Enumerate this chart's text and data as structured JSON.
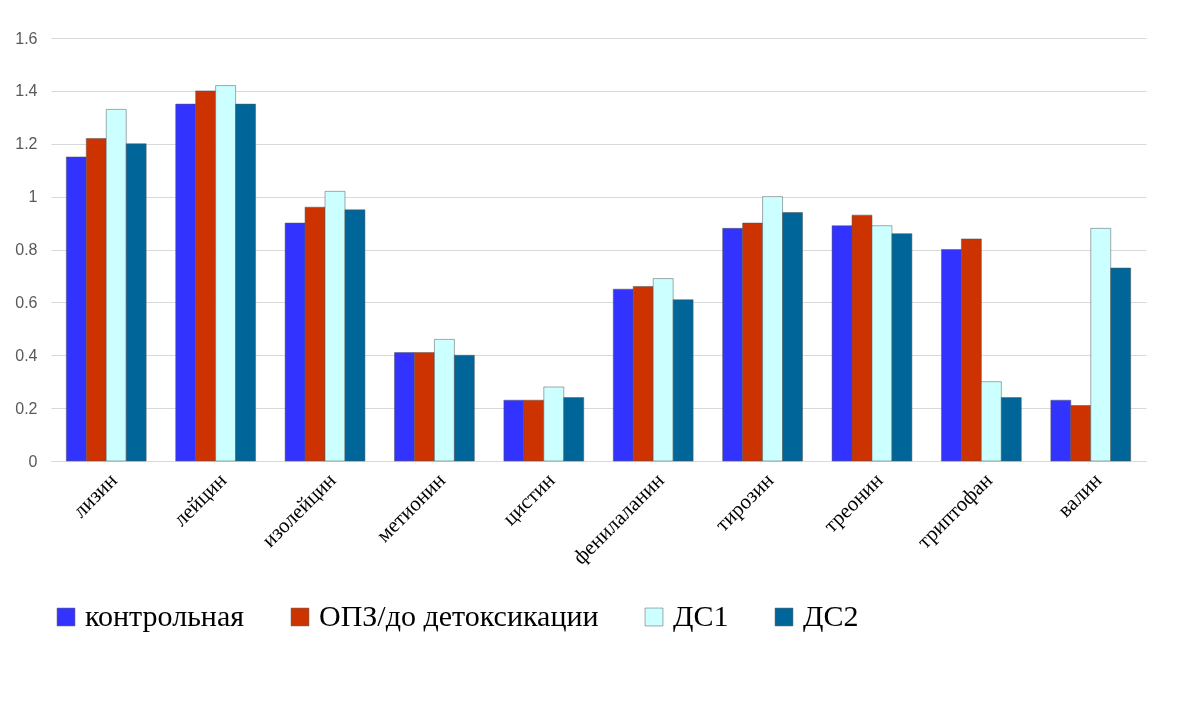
{
  "chart_data": {
    "type": "bar",
    "categories": [
      "лизин",
      "лейцин",
      "изолейцин",
      "метионин",
      "цистин",
      "фенилаланин",
      "тирозин",
      "треонин",
      "триптофан",
      "валин"
    ],
    "series": [
      {
        "name": "контрольная",
        "color": "#3333ff",
        "values": [
          1.15,
          1.35,
          0.9,
          0.41,
          0.23,
          0.65,
          0.88,
          0.89,
          0.8,
          0.23
        ]
      },
      {
        "name": "ОПЗ/до детоксикации",
        "color": "#cc3300",
        "values": [
          1.22,
          1.4,
          0.96,
          0.41,
          0.23,
          0.66,
          0.9,
          0.93,
          0.84,
          0.21
        ]
      },
      {
        "name": "ДС1",
        "color": "#ccffff",
        "values": [
          1.33,
          1.42,
          1.02,
          0.46,
          0.28,
          0.69,
          1.0,
          0.89,
          0.3,
          0.88
        ]
      },
      {
        "name": "ДС2",
        "color": "#006699",
        "values": [
          1.2,
          1.35,
          0.95,
          0.4,
          0.24,
          0.61,
          0.94,
          0.86,
          0.24,
          0.73
        ]
      }
    ],
    "ylim": [
      0,
      1.6
    ],
    "yticks": [
      0,
      0.2,
      0.4,
      0.6,
      0.8,
      1,
      1.2,
      1.4,
      1.6
    ],
    "grid": "y",
    "legend": "bottom"
  }
}
